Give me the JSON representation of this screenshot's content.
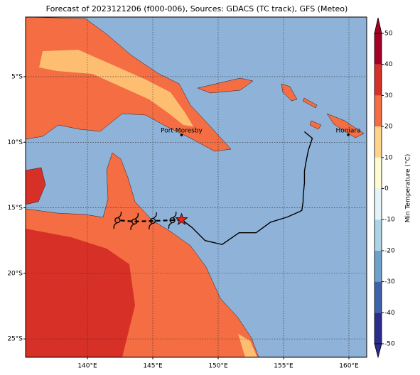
{
  "map": {
    "title": "Forecast of 2023121206 (f000-006), Sources: GDACS (TC track), GFS (Meteo)",
    "lonlim": [
      135.27,
      161.36
    ],
    "latlim": [
      -26.4,
      -0.45
    ],
    "lonticks": [
      {
        "value": 140,
        "label": "140°E"
      },
      {
        "value": 145,
        "label": "145°E"
      },
      {
        "value": 150,
        "label": "150°E"
      },
      {
        "value": 155,
        "label": "155°E"
      },
      {
        "value": 160,
        "label": "160°E"
      }
    ],
    "latticks": [
      {
        "value": -5,
        "label": "5°S"
      },
      {
        "value": -10,
        "label": "10°S"
      },
      {
        "value": -15,
        "label": "15°S"
      },
      {
        "value": -20,
        "label": "20°S"
      },
      {
        "value": -25,
        "label": "25°S"
      }
    ],
    "ocean_color": "#8fb2d8",
    "colorbar": {
      "label": "Min Temperature (°C)",
      "ticks": [
        -50,
        -40,
        -30,
        -20,
        -10,
        0,
        10,
        20,
        30,
        40,
        50
      ],
      "colors": [
        "#2b2d8e",
        "#3f63ab",
        "#6ea2cd",
        "#abd4e7",
        "#e3f4f8",
        "#fefbd2",
        "#fed48a",
        "#f46d43",
        "#d73027",
        "#a50026"
      ]
    },
    "places": [
      {
        "name": "Port Moresby",
        "lon": 147.2,
        "lat": -9.45
      },
      {
        "name": "Honiara",
        "lon": 159.95,
        "lat": -9.43
      }
    ],
    "track": {
      "lon": [
        156.6,
        157.2,
        156.9,
        156.7,
        156.6,
        156.6,
        156.5,
        156.5,
        156.4,
        156.2,
        155.3,
        154.0,
        152.9,
        151.6,
        150.3,
        149.0,
        148.0,
        147.2
      ],
      "lat": [
        -9.2,
        -9.7,
        -10.6,
        -11.6,
        -12.2,
        -13.1,
        -14.1,
        -14.5,
        -15.2,
        -15.3,
        -15.7,
        -16.1,
        -16.9,
        -16.9,
        -17.8,
        -17.5,
        -16.5,
        -15.9
      ]
    },
    "forecast": {
      "lon": [
        147.2,
        146.5,
        145.0,
        143.6,
        142.3
      ],
      "lat": [
        -15.9,
        -15.95,
        -16.0,
        -16.05,
        -15.95
      ]
    }
  }
}
